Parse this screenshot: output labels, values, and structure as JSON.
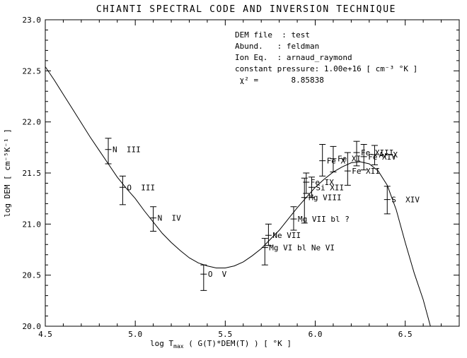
{
  "chart_data": {
    "type": "line",
    "title": "CHIANTI SPECTRAL CODE AND INVERSION TECHNIQUE",
    "xlabel": "log Tmax ( G(T)*DEM(T) ) [ °K ]",
    "xlabel_parts": [
      {
        "t": "log T"
      },
      {
        "t": "max",
        "sub": true
      },
      {
        "t": " ( G(T)*DEM(T) ) [ °K ]"
      }
    ],
    "ylabel": "log DEM [ cm⁻⁵K⁻¹ ]",
    "xlim": [
      4.5,
      6.8
    ],
    "ylim": [
      20.0,
      23.0
    ],
    "xticks": [
      4.5,
      5.0,
      5.5,
      6.0,
      6.5
    ],
    "yticks": [
      20.0,
      20.5,
      21.0,
      21.5,
      22.0,
      22.5,
      23.0
    ],
    "xtick_labels": [
      "4.5",
      "5.0",
      "5.5",
      "6.0",
      "6.5"
    ],
    "ytick_labels": [
      "20.0",
      "20.5",
      "21.0",
      "21.5",
      "22.0",
      "22.5",
      "23.0"
    ],
    "minor_step": 0.1,
    "grid": false,
    "legend": null,
    "colors": {
      "foreground": "#000000",
      "background": "#ffffff"
    },
    "annotation": {
      "lines": [
        "DEM file  : test",
        "Abund.   : feldman",
        "Ion Eq.  : arnaud_raymond",
        "constant pressure: 1.00e+16 [ cm⁻³ °K ]",
        " χ² =       8.85838"
      ]
    },
    "curve": {
      "name": "DEM model curve",
      "points": [
        [
          4.5,
          22.54
        ],
        [
          4.55,
          22.41
        ],
        [
          4.6,
          22.27
        ],
        [
          4.65,
          22.13
        ],
        [
          4.7,
          21.99
        ],
        [
          4.75,
          21.85
        ],
        [
          4.8,
          21.72
        ],
        [
          4.85,
          21.59
        ],
        [
          4.9,
          21.46
        ],
        [
          4.95,
          21.35
        ],
        [
          5.0,
          21.25
        ],
        [
          5.05,
          21.13
        ],
        [
          5.1,
          21.02
        ],
        [
          5.15,
          20.91
        ],
        [
          5.2,
          20.82
        ],
        [
          5.25,
          20.74
        ],
        [
          5.3,
          20.67
        ],
        [
          5.35,
          20.62
        ],
        [
          5.4,
          20.59
        ],
        [
          5.45,
          20.57
        ],
        [
          5.5,
          20.57
        ],
        [
          5.55,
          20.59
        ],
        [
          5.6,
          20.63
        ],
        [
          5.65,
          20.69
        ],
        [
          5.7,
          20.76
        ],
        [
          5.75,
          20.85
        ],
        [
          5.8,
          20.94
        ],
        [
          5.85,
          21.05
        ],
        [
          5.9,
          21.16
        ],
        [
          5.95,
          21.26
        ],
        [
          6.0,
          21.36
        ],
        [
          6.05,
          21.44
        ],
        [
          6.1,
          21.51
        ],
        [
          6.15,
          21.56
        ],
        [
          6.2,
          21.6
        ],
        [
          6.25,
          21.61
        ],
        [
          6.3,
          21.59
        ],
        [
          6.35,
          21.52
        ],
        [
          6.4,
          21.38
        ],
        [
          6.45,
          21.14
        ],
        [
          6.5,
          20.82
        ],
        [
          6.55,
          20.52
        ],
        [
          6.6,
          20.26
        ],
        [
          6.64,
          20.0
        ]
      ]
    },
    "points": [
      {
        "label": "N  III",
        "x": 4.85,
        "y": 21.73,
        "ylo": 21.59,
        "yhi": 21.84
      },
      {
        "label": "O  III",
        "x": 4.93,
        "y": 21.36,
        "ylo": 21.19,
        "yhi": 21.47
      },
      {
        "label": "N  IV",
        "x": 5.1,
        "y": 21.06,
        "ylo": 20.93,
        "yhi": 21.17
      },
      {
        "label": "O  V",
        "x": 5.38,
        "y": 20.51,
        "ylo": 20.35,
        "yhi": 20.6
      },
      {
        "label": "Mg VI bl Ne VI",
        "x": 5.72,
        "y": 20.77,
        "ylo": 20.6,
        "yhi": 20.86
      },
      {
        "label": "Ne VII",
        "x": 5.74,
        "y": 20.89,
        "ylo": 20.79,
        "yhi": 21.0
      },
      {
        "label": "Mg VII bl ?",
        "x": 5.88,
        "y": 21.05,
        "ylo": 20.94,
        "yhi": 21.17
      },
      {
        "label": "Mg VIII",
        "x": 5.94,
        "y": 21.26,
        "ylo": 21.01,
        "yhi": 21.45
      },
      {
        "label": "Fe IX",
        "x": 5.95,
        "y": 21.41,
        "ylo": 21.3,
        "yhi": 21.5
      },
      {
        "label": "Si XII",
        "x": 5.98,
        "y": 21.36,
        "ylo": 21.26,
        "yhi": 21.46
      },
      {
        "label": "Fe X",
        "x": 6.04,
        "y": 21.62,
        "ylo": 21.47,
        "yhi": 21.78
      },
      {
        "label": "Fe XI",
        "x": 6.1,
        "y": 21.64,
        "ylo": 21.51,
        "yhi": 21.76
      },
      {
        "label": "Fe XII",
        "x": 6.18,
        "y": 21.52,
        "ylo": 21.38,
        "yhi": 21.7
      },
      {
        "label": "Fe XIII",
        "x": 6.23,
        "y": 21.7,
        "ylo": 21.57,
        "yhi": 21.81
      },
      {
        "label": "Fe XIV",
        "x": 6.27,
        "y": 21.66,
        "ylo": 21.53,
        "yhi": 21.78
      },
      {
        "label": "Ar X",
        "x": 6.33,
        "y": 21.68,
        "ylo": 21.58,
        "yhi": 21.77
      },
      {
        "label": "S  XIV",
        "x": 6.4,
        "y": 21.24,
        "ylo": 21.1,
        "yhi": 21.37
      }
    ]
  }
}
